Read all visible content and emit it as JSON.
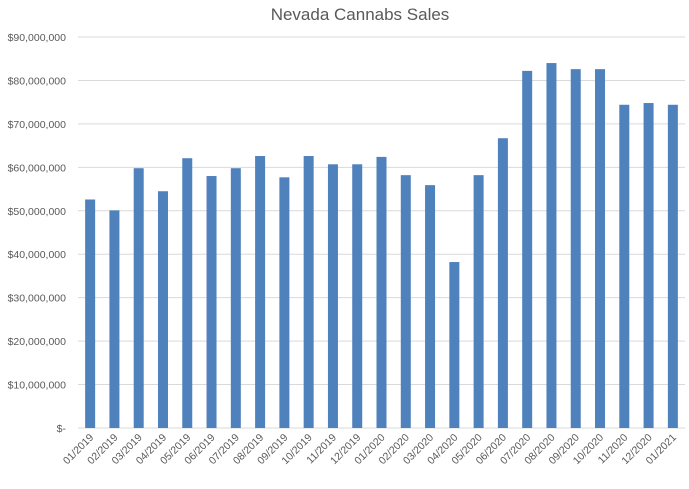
{
  "chart_data": {
    "type": "bar",
    "title": "Nevada Cannabs Sales",
    "xlabel": "",
    "ylabel": "",
    "ylim": [
      0,
      90000000
    ],
    "grid": true,
    "bar_color": "#4f81bd",
    "y_ticks": [
      {
        "value": 0,
        "label": "$-"
      },
      {
        "value": 10000000,
        "label": "$10,000,000"
      },
      {
        "value": 20000000,
        "label": "$20,000,000"
      },
      {
        "value": 30000000,
        "label": "$30,000,000"
      },
      {
        "value": 40000000,
        "label": "$40,000,000"
      },
      {
        "value": 50000000,
        "label": "$50,000,000"
      },
      {
        "value": 60000000,
        "label": "$60,000,000"
      },
      {
        "value": 70000000,
        "label": "$70,000,000"
      },
      {
        "value": 80000000,
        "label": "$80,000,000"
      },
      {
        "value": 90000000,
        "label": "$90,000,000"
      }
    ],
    "categories": [
      "01/2019",
      "02/2019",
      "03/2019",
      "04/2019",
      "05/2019",
      "06/2019",
      "07/2019",
      "08/2019",
      "09/2019",
      "10/2019",
      "11/2019",
      "12/2019",
      "01/2020",
      "02/2020",
      "03/2020",
      "04/2020",
      "05/2020",
      "06/2020",
      "07/2020",
      "08/2020",
      "09/2020",
      "10/2020",
      "11/2020",
      "12/2020",
      "01/2021"
    ],
    "values": [
      52600000,
      50100000,
      59800000,
      54500000,
      62100000,
      58000000,
      59800000,
      62600000,
      57700000,
      62600000,
      60700000,
      60700000,
      62400000,
      58200000,
      55900000,
      38200000,
      58200000,
      66700000,
      82200000,
      84000000,
      82600000,
      82600000,
      74400000,
      74800000,
      74400000
    ]
  }
}
